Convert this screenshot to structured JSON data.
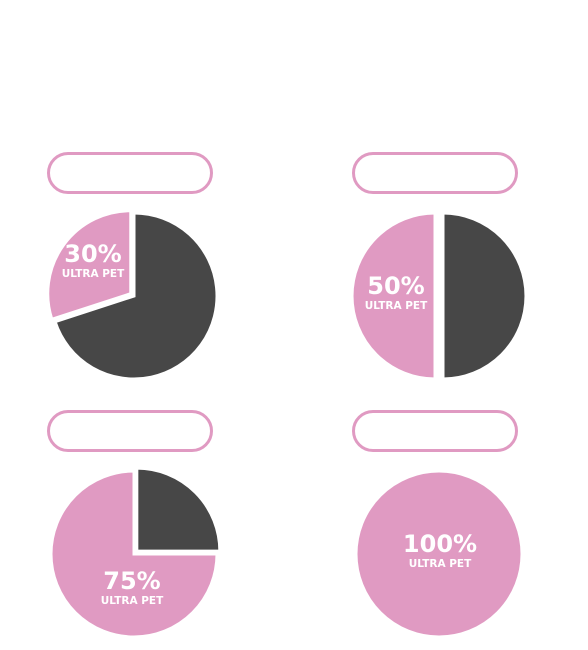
{
  "colors": {
    "pink": "#e09ac2",
    "dark": "#474747",
    "background": "#ffffff"
  },
  "chart_data": [
    {
      "type": "pie",
      "label_value": "30%",
      "label_text": "ULTRA PET",
      "slices": [
        {
          "name": "ULTRA PET",
          "value": 30,
          "color": "#e09ac2"
        },
        {
          "name": "",
          "value": 70,
          "color": "#474747"
        }
      ]
    },
    {
      "type": "pie",
      "label_value": "50%",
      "label_text": "ULTRA PET",
      "slices": [
        {
          "name": "ULTRA PET",
          "value": 50,
          "color": "#e09ac2"
        },
        {
          "name": "",
          "value": 50,
          "color": "#474747"
        }
      ]
    },
    {
      "type": "pie",
      "label_value": "75%",
      "label_text": "ULTRA PET",
      "slices": [
        {
          "name": "ULTRA PET",
          "value": 75,
          "color": "#e09ac2"
        },
        {
          "name": "",
          "value": 25,
          "color": "#474747"
        }
      ]
    },
    {
      "type": "pie",
      "label_value": "100%",
      "label_text": "ULTRA PET",
      "slices": [
        {
          "name": "ULTRA PET",
          "value": 100,
          "color": "#e09ac2"
        }
      ]
    }
  ]
}
